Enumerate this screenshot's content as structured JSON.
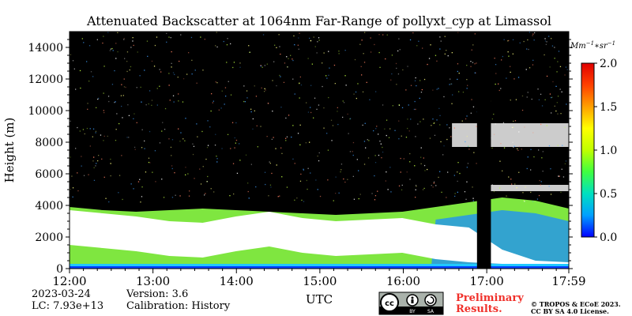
{
  "chart_data": {
    "type": "heatmap",
    "title": "Attenuated Backscatter at 1064nm Far-Range of pollyxt_cyp at Limassol",
    "xlabel": "UTC",
    "ylabel": "Height (m)",
    "x_ticks": [
      "12:00",
      "13:00",
      "14:00",
      "15:00",
      "16:00",
      "17:00",
      "17:59"
    ],
    "x_range": [
      "12:00",
      "17:59"
    ],
    "y_ticks": [
      0,
      2000,
      4000,
      6000,
      8000,
      10000,
      12000,
      14000
    ],
    "ylim": [
      0,
      15000
    ],
    "colorbar": {
      "unit": "Mm^{-1}*sr^{-1}",
      "ticks": [
        "0.0",
        "0.5",
        "1.0",
        "1.5",
        "2.0"
      ],
      "range": [
        0.0,
        2.0
      ],
      "colormap": [
        "#0000ff",
        "#00a0ff",
        "#00e0c0",
        "#40ff40",
        "#c0ff00",
        "#ffff00",
        "#ffa000",
        "#ff4000",
        "#e00000"
      ]
    },
    "data_gap": {
      "start": "16:53",
      "end": "17:03"
    },
    "layers": {
      "aerosol_top_m": [
        3900,
        3700,
        3600,
        3700,
        3800,
        3700,
        3600,
        3500,
        3400,
        3500,
        3600,
        3900,
        4200,
        4500,
        4300,
        3800
      ],
      "cloud_top_m": [
        3700,
        3500,
        3300,
        3000,
        2900,
        3300,
        3600,
        3200,
        3000,
        3100,
        3200,
        2800,
        2600,
        1200,
        500,
        400
      ]
    },
    "clouds_upper": [
      {
        "start": "16:35",
        "end": "17:59",
        "bottom_m": 7700,
        "top_m": 9200
      },
      {
        "start": "17:00",
        "end": "17:59",
        "bottom_m": 4900,
        "top_m": 5300
      }
    ]
  },
  "footer": {
    "date": "2023-03-24",
    "lc": "LC: 7.93e+13",
    "version": "Version: 3.6",
    "calibration": "Calibration: History",
    "license_badge": "cc-by-sa-icon",
    "preliminary_line1": "Preliminary",
    "preliminary_line2": "Results.",
    "copyright_line1": "© TROPOS & ECoE 2023.",
    "copyright_line2": "CC BY SA 4.0 License."
  }
}
